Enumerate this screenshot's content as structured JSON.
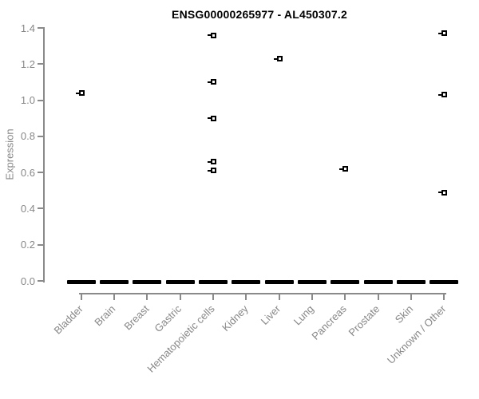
{
  "chart_data": {
    "type": "scatter",
    "subtype": "boxplot-with-outliers",
    "title": "ENSG00000265977 - AL450307.2",
    "xlabel": "",
    "ylabel": "Expression",
    "ylim": [
      0.0,
      1.4
    ],
    "ytick_labels": [
      "0.0",
      "0.2",
      "0.4",
      "0.6",
      "0.8",
      "1.0",
      "1.2",
      "1.4"
    ],
    "ytick_values": [
      0.0,
      0.2,
      0.4,
      0.6,
      0.8,
      1.0,
      1.2,
      1.4
    ],
    "grid": "off",
    "legend": "none",
    "categories": [
      "Bladder",
      "Brain",
      "Breast",
      "Gastric",
      "Hematopoietic cells",
      "Kidney",
      "Liver",
      "Lung",
      "Pancreas",
      "Prostate",
      "Skin",
      "Unknown / Other"
    ],
    "median_bar_value_all_categories": 0.0,
    "series": [
      {
        "name": "Bladder",
        "median": 0.0,
        "outliers": [
          1.04
        ]
      },
      {
        "name": "Brain",
        "median": 0.0,
        "outliers": []
      },
      {
        "name": "Breast",
        "median": 0.0,
        "outliers": []
      },
      {
        "name": "Gastric",
        "median": 0.0,
        "outliers": []
      },
      {
        "name": "Hematopoietic cells",
        "median": 0.0,
        "outliers": [
          1.36,
          1.1,
          0.9,
          0.66,
          0.61
        ]
      },
      {
        "name": "Kidney",
        "median": 0.0,
        "outliers": []
      },
      {
        "name": "Liver",
        "median": 0.0,
        "outliers": [
          1.23
        ]
      },
      {
        "name": "Lung",
        "median": 0.0,
        "outliers": []
      },
      {
        "name": "Pancreas",
        "median": 0.0,
        "outliers": [
          0.62
        ]
      },
      {
        "name": "Prostate",
        "median": 0.0,
        "outliers": []
      },
      {
        "name": "Skin",
        "median": 0.0,
        "outliers": []
      },
      {
        "name": "Unknown / Other",
        "median": 0.0,
        "outliers": [
          1.37,
          1.03,
          0.49
        ]
      }
    ],
    "colors": {
      "title": "#000000",
      "axis": "#8a8a8a",
      "tick_text": "#878787",
      "marks": "#000000",
      "background": "#ffffff"
    }
  }
}
